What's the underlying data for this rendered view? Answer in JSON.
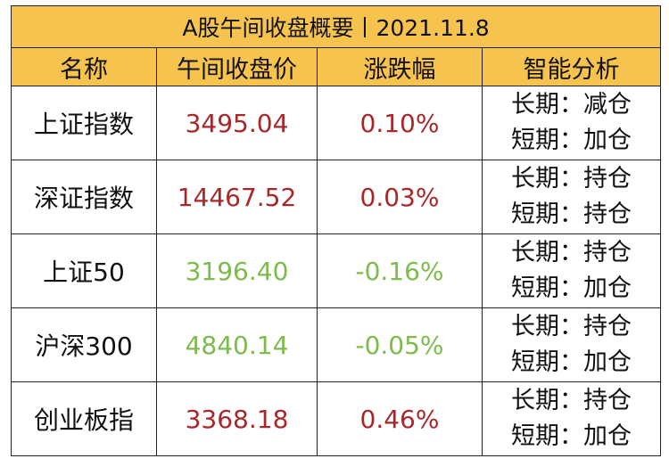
{
  "header": {
    "title": "A股午间收盘概要丨2021.11.8"
  },
  "table": {
    "columns": [
      "名称",
      "午间收盘价",
      "涨跌幅",
      "智能分析"
    ],
    "rows": [
      {
        "name": "上证指数",
        "price": "3495.04",
        "change": "0.10%",
        "color": "#a8282a",
        "analysis": [
          "长期：减仓",
          "短期：加仓"
        ]
      },
      {
        "name": "深证指数",
        "price": "14467.52",
        "change": "0.03%",
        "color": "#a8282a",
        "analysis": [
          "长期：持仓",
          "短期：持仓"
        ]
      },
      {
        "name": "上证50",
        "price": "3196.40",
        "change": "-0.16%",
        "color": "#7dbb4c",
        "analysis": [
          "长期：持仓",
          "短期：加仓"
        ]
      },
      {
        "name": "沪深300",
        "price": "4840.14",
        "change": "-0.05%",
        "color": "#7dbb4c",
        "analysis": [
          "长期：持仓",
          "短期：加仓"
        ]
      },
      {
        "name": "创业板指",
        "price": "3368.18",
        "change": "0.46%",
        "color": "#a8282a",
        "analysis": [
          "长期：持仓",
          "短期：加仓"
        ]
      }
    ]
  }
}
